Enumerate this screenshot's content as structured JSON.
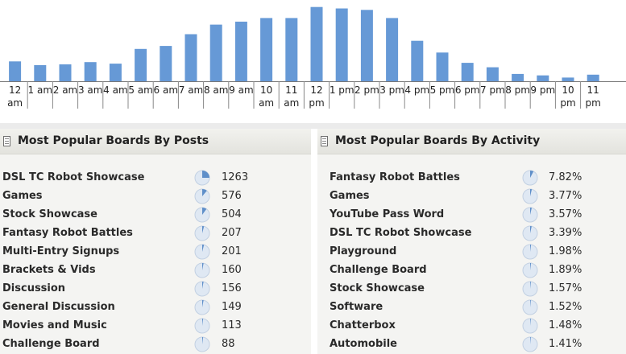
{
  "chart_data": {
    "type": "bar",
    "categories": [
      "12 am",
      "1 am",
      "2 am",
      "3 am",
      "4 am",
      "5 am",
      "6 am",
      "7 am",
      "8 am",
      "9 am",
      "10 am",
      "11 am",
      "12 pm",
      "1 pm",
      "2 pm",
      "3 pm",
      "4 pm",
      "5 pm",
      "6 pm",
      "7 pm",
      "8 pm",
      "9 pm",
      "10 pm",
      "11 pm"
    ],
    "tick_labels": [
      [
        "12",
        "am"
      ],
      [
        "1 am"
      ],
      [
        "2 am"
      ],
      [
        "3 am"
      ],
      [
        "4 am"
      ],
      [
        "5 am"
      ],
      [
        "6 am"
      ],
      [
        "7 am"
      ],
      [
        "8 am"
      ],
      [
        "9 am"
      ],
      [
        "10",
        "am"
      ],
      [
        "11",
        "am"
      ],
      [
        "12",
        "pm"
      ],
      [
        "1 pm"
      ],
      [
        "2 pm"
      ],
      [
        "3 pm"
      ],
      [
        "4 pm"
      ],
      [
        "5 pm"
      ],
      [
        "6 pm"
      ],
      [
        "7 pm"
      ],
      [
        "8 pm"
      ],
      [
        "9 pm"
      ],
      [
        "10",
        "pm"
      ],
      [
        "11",
        "pm"
      ]
    ],
    "values": [
      27,
      22,
      23,
      26,
      24,
      44,
      48,
      64,
      77,
      81,
      86,
      86,
      101,
      99,
      97,
      86,
      55,
      39,
      25,
      19,
      10,
      8,
      5,
      9
    ],
    "ylim": [
      0,
      105
    ],
    "bar_color": "#6699d6"
  },
  "posts": {
    "title": "Most Popular Boards By Posts",
    "rows": [
      {
        "name": "DSL TC Robot Showcase",
        "value": "1263",
        "share": 0.25
      },
      {
        "name": "Games",
        "value": "576",
        "share": 0.11
      },
      {
        "name": "Stock Showcase",
        "value": "504",
        "share": 0.1
      },
      {
        "name": "Fantasy Robot Battles",
        "value": "207",
        "share": 0.04
      },
      {
        "name": "Multi-Entry Signups",
        "value": "201",
        "share": 0.04
      },
      {
        "name": "Brackets & Vids",
        "value": "160",
        "share": 0.03
      },
      {
        "name": "Discussion",
        "value": "156",
        "share": 0.03
      },
      {
        "name": "General Discussion",
        "value": "149",
        "share": 0.03
      },
      {
        "name": "Movies and Music",
        "value": "113",
        "share": 0.02
      },
      {
        "name": "Challenge Board",
        "value": "88",
        "share": 0.02
      }
    ]
  },
  "activity": {
    "title": "Most Popular Boards By Activity",
    "rows": [
      {
        "name": "Fantasy Robot Battles",
        "value": "7.82%",
        "share": 0.0782
      },
      {
        "name": "Games",
        "value": "3.77%",
        "share": 0.0377
      },
      {
        "name": "YouTube Pass Word",
        "value": "3.57%",
        "share": 0.0357
      },
      {
        "name": "DSL TC Robot Showcase",
        "value": "3.39%",
        "share": 0.0339
      },
      {
        "name": "Playground",
        "value": "1.98%",
        "share": 0.0198
      },
      {
        "name": "Challenge Board",
        "value": "1.89%",
        "share": 0.0189
      },
      {
        "name": "Stock Showcase",
        "value": "1.57%",
        "share": 0.0157
      },
      {
        "name": "Software",
        "value": "1.52%",
        "share": 0.0152
      },
      {
        "name": "Chatterbox",
        "value": "1.48%",
        "share": 0.0148
      },
      {
        "name": "Automobile",
        "value": "1.41%",
        "share": 0.0141
      }
    ]
  },
  "colors": {
    "pie_bg": "#dfe8f3",
    "pie_fill": "#5f8fc9",
    "pie_stroke": "#c2d0e2"
  }
}
